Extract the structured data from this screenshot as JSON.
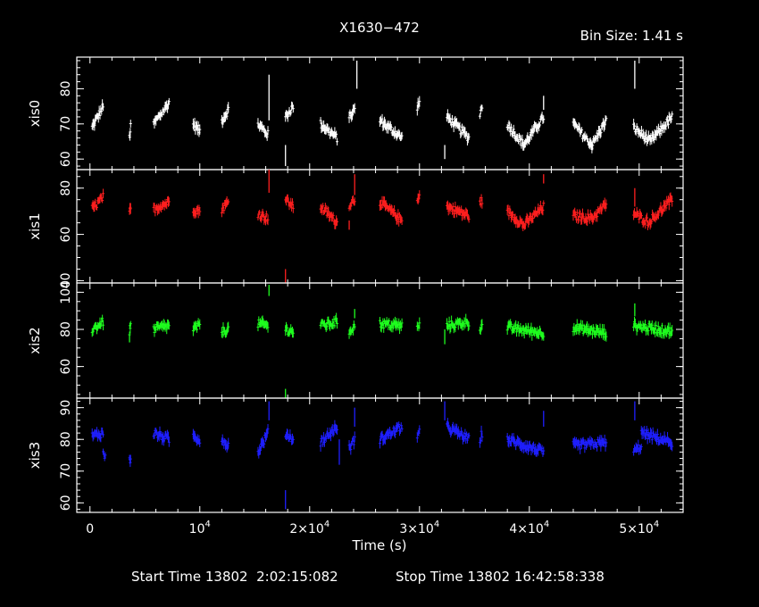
{
  "chart_data": {
    "type": "scatter",
    "title": "X1630−472",
    "bin_size": "Bin Size: 1.41 s",
    "xlabel": "Time (s)",
    "start_time": "Start Time 13802  2:02:15:082",
    "stop_time": "Stop Time 13802 16:42:58:338",
    "xlim": [
      -1200,
      54000
    ],
    "x_ticks": [
      {
        "value": 0,
        "mantissa": "0",
        "exp": ""
      },
      {
        "value": 10000,
        "mantissa": "10",
        "exp": "4"
      },
      {
        "value": 20000,
        "mantissa": "2×10",
        "exp": "4"
      },
      {
        "value": 30000,
        "mantissa": "3×10",
        "exp": "4"
      },
      {
        "value": 40000,
        "mantissa": "4×10",
        "exp": "4"
      },
      {
        "value": 50000,
        "mantissa": "5×10",
        "exp": "4"
      }
    ],
    "panels": [
      {
        "name": "xis0",
        "color": "#ffffff",
        "ylim": [
          57,
          89
        ],
        "yticks": [
          "60",
          "70",
          "80"
        ],
        "tick_values": [
          60,
          70,
          80
        ],
        "minor_step": 2,
        "segments": [
          {
            "t0": 200,
            "t1": 1200,
            "v0": 69,
            "v1": 75
          },
          {
            "t0": 3600,
            "t1": 3700,
            "v0": 66,
            "v1": 69
          },
          {
            "t0": 5800,
            "t1": 7200,
            "v0": 70,
            "v1": 76
          },
          {
            "t0": 9400,
            "t1": 10000,
            "v0": 70,
            "v1": 68
          },
          {
            "t0": 12000,
            "t1": 12600,
            "v0": 71,
            "v1": 74
          },
          {
            "t0": 15300,
            "t1": 16200,
            "v0": 70,
            "v1": 67
          },
          {
            "t0": 17800,
            "t1": 18500,
            "v0": 72,
            "v1": 75
          },
          {
            "t0": 21000,
            "t1": 22500,
            "v0": 70,
            "v1": 66
          },
          {
            "t0": 23600,
            "t1": 24100,
            "v0": 72,
            "v1": 74
          },
          {
            "t0": 26400,
            "t1": 28400,
            "v0": 71,
            "v1": 66
          },
          {
            "t0": 29800,
            "t1": 30000,
            "v0": 75,
            "v1": 76
          },
          {
            "t0": 32500,
            "t1": 34500,
            "v0": 72,
            "v1": 66
          },
          {
            "t0": 35500,
            "t1": 35700,
            "v0": 73,
            "v1": 75
          },
          {
            "t0": 38000,
            "t1": 39500,
            "v0": 70,
            "v1": 64
          },
          {
            "t0": 39500,
            "t1": 41300,
            "v0": 64,
            "v1": 72
          },
          {
            "t0": 44000,
            "t1": 45700,
            "v0": 70,
            "v1": 64
          },
          {
            "t0": 45700,
            "t1": 47000,
            "v0": 64,
            "v1": 71
          },
          {
            "t0": 49500,
            "t1": 51000,
            "v0": 69,
            "v1": 65
          },
          {
            "t0": 51000,
            "t1": 53000,
            "v0": 65,
            "v1": 72
          }
        ],
        "spikes": [
          {
            "t": 16300,
            "lo": 71,
            "hi": 84
          },
          {
            "t": 17800,
            "lo": 58,
            "hi": 64
          },
          {
            "t": 24300,
            "lo": 80,
            "hi": 88
          },
          {
            "t": 32300,
            "lo": 60,
            "hi": 64
          },
          {
            "t": 49600,
            "lo": 80,
            "hi": 88
          },
          {
            "t": 41300,
            "lo": 74,
            "hi": 78
          }
        ]
      },
      {
        "name": "xis1",
        "color": "#ff1f1f",
        "ylim": [
          39,
          88
        ],
        "yticks": [
          "40",
          "60",
          "80"
        ],
        "tick_values": [
          40,
          60,
          80
        ],
        "minor_step": 5,
        "segments": [
          {
            "t0": 200,
            "t1": 1200,
            "v0": 71,
            "v1": 76
          },
          {
            "t0": 3600,
            "t1": 3700,
            "v0": 69,
            "v1": 71
          },
          {
            "t0": 5800,
            "t1": 7200,
            "v0": 71,
            "v1": 74
          },
          {
            "t0": 9400,
            "t1": 10000,
            "v0": 71,
            "v1": 70
          },
          {
            "t0": 12000,
            "t1": 12600,
            "v0": 71,
            "v1": 74
          },
          {
            "t0": 15300,
            "t1": 16200,
            "v0": 69,
            "v1": 67
          },
          {
            "t0": 17800,
            "t1": 18500,
            "v0": 75,
            "v1": 72
          },
          {
            "t0": 21000,
            "t1": 22500,
            "v0": 72,
            "v1": 65
          },
          {
            "t0": 23600,
            "t1": 24100,
            "v0": 73,
            "v1": 75
          },
          {
            "t0": 26400,
            "t1": 28400,
            "v0": 74,
            "v1": 66
          },
          {
            "t0": 29800,
            "t1": 30000,
            "v0": 76,
            "v1": 77
          },
          {
            "t0": 32500,
            "t1": 34500,
            "v0": 72,
            "v1": 68
          },
          {
            "t0": 35500,
            "t1": 35700,
            "v0": 73,
            "v1": 75
          },
          {
            "t0": 38000,
            "t1": 39500,
            "v0": 70,
            "v1": 64
          },
          {
            "t0": 39500,
            "t1": 41300,
            "v0": 64,
            "v1": 72
          },
          {
            "t0": 44000,
            "t1": 45700,
            "v0": 68,
            "v1": 67
          },
          {
            "t0": 45700,
            "t1": 47000,
            "v0": 67,
            "v1": 73
          },
          {
            "t0": 49500,
            "t1": 51000,
            "v0": 69,
            "v1": 65
          },
          {
            "t0": 51000,
            "t1": 53000,
            "v0": 66,
            "v1": 75
          }
        ],
        "spikes": [
          {
            "t": 16300,
            "lo": 78,
            "hi": 88
          },
          {
            "t": 17800,
            "lo": 39,
            "hi": 45
          },
          {
            "t": 24100,
            "lo": 77,
            "hi": 86
          },
          {
            "t": 23600,
            "lo": 62,
            "hi": 66
          },
          {
            "t": 41300,
            "lo": 82,
            "hi": 86
          },
          {
            "t": 49600,
            "lo": 72,
            "hi": 80
          }
        ]
      },
      {
        "name": "xis2",
        "color": "#1fff1f",
        "ylim": [
          43,
          105
        ],
        "yticks": [
          "60",
          "80",
          "100"
        ],
        "tick_values": [
          60,
          80,
          100
        ],
        "minor_step": 5,
        "segments": [
          {
            "t0": 200,
            "t1": 1200,
            "v0": 80,
            "v1": 84
          },
          {
            "t0": 3600,
            "t1": 3700,
            "v0": 79,
            "v1": 82
          },
          {
            "t0": 5800,
            "t1": 7200,
            "v0": 80,
            "v1": 82
          },
          {
            "t0": 9400,
            "t1": 10000,
            "v0": 80,
            "v1": 82
          },
          {
            "t0": 12000,
            "t1": 12600,
            "v0": 79,
            "v1": 80
          },
          {
            "t0": 15300,
            "t1": 16200,
            "v0": 83,
            "v1": 82
          },
          {
            "t0": 17800,
            "t1": 18500,
            "v0": 80,
            "v1": 79
          },
          {
            "t0": 21000,
            "t1": 22500,
            "v0": 82,
            "v1": 84
          },
          {
            "t0": 23600,
            "t1": 24100,
            "v0": 79,
            "v1": 82
          },
          {
            "t0": 26400,
            "t1": 28400,
            "v0": 83,
            "v1": 82
          },
          {
            "t0": 29800,
            "t1": 30000,
            "v0": 81,
            "v1": 82
          },
          {
            "t0": 32500,
            "t1": 34500,
            "v0": 82,
            "v1": 84
          },
          {
            "t0": 35500,
            "t1": 35700,
            "v0": 80,
            "v1": 82
          },
          {
            "t0": 38000,
            "t1": 41300,
            "v0": 81,
            "v1": 78
          },
          {
            "t0": 44000,
            "t1": 47000,
            "v0": 81,
            "v1": 78
          },
          {
            "t0": 49500,
            "t1": 53000,
            "v0": 82,
            "v1": 79
          }
        ],
        "spikes": [
          {
            "t": 16300,
            "lo": 98,
            "hi": 104
          },
          {
            "t": 17800,
            "lo": 43,
            "hi": 48
          },
          {
            "t": 24100,
            "lo": 86,
            "hi": 91
          },
          {
            "t": 32300,
            "lo": 72,
            "hi": 80
          },
          {
            "t": 3600,
            "lo": 73,
            "hi": 77
          },
          {
            "t": 49600,
            "lo": 87,
            "hi": 94
          }
        ]
      },
      {
        "name": "xis3",
        "color": "#1f1fff",
        "ylim": [
          57,
          93
        ],
        "yticks": [
          "60",
          "70",
          "80",
          "90"
        ],
        "tick_values": [
          60,
          70,
          80,
          90
        ],
        "minor_step": 2,
        "segments": [
          {
            "t0": 200,
            "t1": 1200,
            "v0": 81,
            "v1": 82
          },
          {
            "t0": 1200,
            "t1": 1400,
            "v0": 76,
            "v1": 74
          },
          {
            "t0": 3600,
            "t1": 3700,
            "v0": 75,
            "v1": 73
          },
          {
            "t0": 5800,
            "t1": 7200,
            "v0": 82,
            "v1": 80
          },
          {
            "t0": 9400,
            "t1": 10000,
            "v0": 81,
            "v1": 80
          },
          {
            "t0": 12000,
            "t1": 12600,
            "v0": 80,
            "v1": 78
          },
          {
            "t0": 15300,
            "t1": 16200,
            "v0": 76,
            "v1": 82
          },
          {
            "t0": 17800,
            "t1": 18500,
            "v0": 82,
            "v1": 80
          },
          {
            "t0": 21000,
            "t1": 22500,
            "v0": 79,
            "v1": 84
          },
          {
            "t0": 23600,
            "t1": 24100,
            "v0": 77,
            "v1": 80
          },
          {
            "t0": 26400,
            "t1": 28400,
            "v0": 80,
            "v1": 84
          },
          {
            "t0": 29800,
            "t1": 30000,
            "v0": 81,
            "v1": 82
          },
          {
            "t0": 32500,
            "t1": 34500,
            "v0": 84,
            "v1": 80
          },
          {
            "t0": 35500,
            "t1": 35700,
            "v0": 80,
            "v1": 82
          },
          {
            "t0": 38000,
            "t1": 41300,
            "v0": 80,
            "v1": 76
          },
          {
            "t0": 44000,
            "t1": 47000,
            "v0": 78,
            "v1": 79
          },
          {
            "t0": 49500,
            "t1": 50200,
            "v0": 76,
            "v1": 78
          },
          {
            "t0": 50200,
            "t1": 53000,
            "v0": 82,
            "v1": 79
          }
        ],
        "spikes": [
          {
            "t": 16300,
            "lo": 86,
            "hi": 92
          },
          {
            "t": 17800,
            "lo": 58,
            "hi": 64
          },
          {
            "t": 24100,
            "lo": 84,
            "hi": 90
          },
          {
            "t": 32300,
            "lo": 86,
            "hi": 92
          },
          {
            "t": 41300,
            "lo": 84,
            "hi": 89
          },
          {
            "t": 49600,
            "lo": 86,
            "hi": 92
          },
          {
            "t": 22700,
            "lo": 72,
            "hi": 80
          }
        ]
      }
    ]
  }
}
